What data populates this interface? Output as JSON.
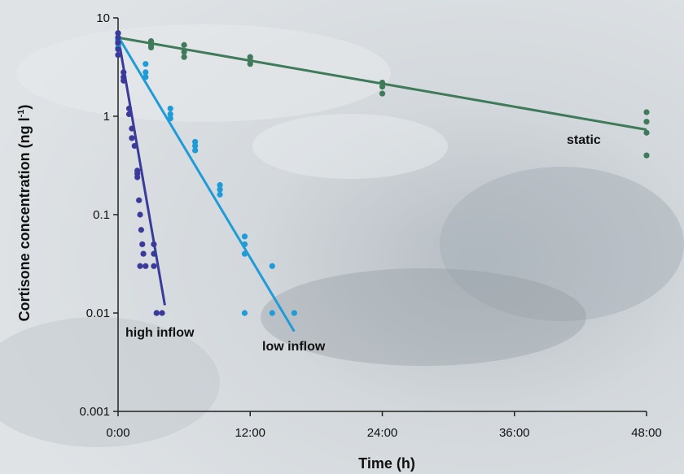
{
  "chart_data": {
    "type": "scatter",
    "title": "",
    "xlabel": "Time (h)",
    "ylabel_main": "Cortisone concentration (ng l",
    "ylabel_sup": "-1",
    "ylabel_close": ")",
    "yscale": "log",
    "xlim_hours": [
      0,
      48
    ],
    "ylim": [
      0.001,
      10
    ],
    "x_ticks": [
      {
        "hours": 0,
        "label": "0:00"
      },
      {
        "hours": 12,
        "label": "12:00"
      },
      {
        "hours": 24,
        "label": "24:00"
      },
      {
        "hours": 36,
        "label": "36:00"
      },
      {
        "hours": 48,
        "label": "48:00"
      }
    ],
    "y_ticks": [
      {
        "value": 10,
        "label": "10"
      },
      {
        "value": 1,
        "label": "1"
      },
      {
        "value": 0.1,
        "label": "0.1"
      },
      {
        "value": 0.01,
        "label": "0.01"
      },
      {
        "value": 0.001,
        "label": "0.001"
      }
    ],
    "series": [
      {
        "label": "static",
        "color": "#3f7a5a",
        "trend": [
          [
            0,
            6.3
          ],
          [
            48,
            0.73
          ]
        ],
        "points": [
          [
            0,
            7.0
          ],
          [
            0,
            6.3
          ],
          [
            0,
            5.8
          ],
          [
            0,
            5.5
          ],
          [
            3,
            5.8
          ],
          [
            3,
            5.3
          ],
          [
            3,
            5.0
          ],
          [
            6,
            5.3
          ],
          [
            6,
            4.5
          ],
          [
            6,
            4.0
          ],
          [
            12,
            4.0
          ],
          [
            12,
            3.7
          ],
          [
            12,
            3.4
          ],
          [
            24,
            2.2
          ],
          [
            24,
            2.0
          ],
          [
            24,
            1.7
          ],
          [
            48,
            1.1
          ],
          [
            48,
            0.88
          ],
          [
            48,
            0.68
          ],
          [
            48,
            0.4
          ]
        ]
      },
      {
        "label": "low inflow",
        "color": "#1f9bd7",
        "trend": [
          [
            0,
            6.5
          ],
          [
            16,
            0.0065
          ]
        ],
        "points": [
          [
            0,
            6.0
          ],
          [
            0,
            5.0
          ],
          [
            0,
            4.2
          ],
          [
            2.5,
            3.4
          ],
          [
            2.5,
            2.8
          ],
          [
            2.5,
            2.5
          ],
          [
            4.75,
            1.2
          ],
          [
            4.75,
            1.05
          ],
          [
            4.75,
            0.95
          ],
          [
            7,
            0.55
          ],
          [
            7,
            0.5
          ],
          [
            7,
            0.45
          ],
          [
            9.25,
            0.2
          ],
          [
            9.25,
            0.18
          ],
          [
            9.25,
            0.16
          ],
          [
            11.5,
            0.06
          ],
          [
            11.5,
            0.05
          ],
          [
            11.5,
            0.04
          ],
          [
            11.5,
            0.01
          ],
          [
            14,
            0.03
          ],
          [
            14,
            0.01
          ],
          [
            16,
            0.01
          ]
        ]
      },
      {
        "label": "high inflow",
        "color": "#3a3a9a",
        "trend": [
          [
            0,
            6.5
          ],
          [
            4.25,
            0.012
          ]
        ],
        "points": [
          [
            0,
            7.0
          ],
          [
            0,
            6.3
          ],
          [
            0,
            5.6
          ],
          [
            0,
            4.8
          ],
          [
            0,
            4.2
          ],
          [
            0.5,
            2.8
          ],
          [
            0.5,
            2.5
          ],
          [
            0.5,
            2.3
          ],
          [
            1.0,
            1.2
          ],
          [
            1.0,
            1.05
          ],
          [
            1.25,
            0.75
          ],
          [
            1.25,
            0.6
          ],
          [
            1.5,
            0.5
          ],
          [
            1.75,
            0.28
          ],
          [
            1.75,
            0.26
          ],
          [
            1.75,
            0.24
          ],
          [
            1.9,
            0.14
          ],
          [
            2.0,
            0.1
          ],
          [
            2.1,
            0.07
          ],
          [
            2.2,
            0.05
          ],
          [
            2.3,
            0.04
          ],
          [
            2.0,
            0.03
          ],
          [
            2.5,
            0.03
          ],
          [
            3.25,
            0.05
          ],
          [
            3.25,
            0.04
          ],
          [
            3.25,
            0.03
          ],
          [
            3.5,
            0.01
          ],
          [
            3.5,
            0.01
          ],
          [
            4.0,
            0.01
          ]
        ]
      }
    ],
    "annotations": [
      {
        "text": "static"
      },
      {
        "text": "low inflow"
      },
      {
        "text": "high inflow"
      }
    ]
  }
}
